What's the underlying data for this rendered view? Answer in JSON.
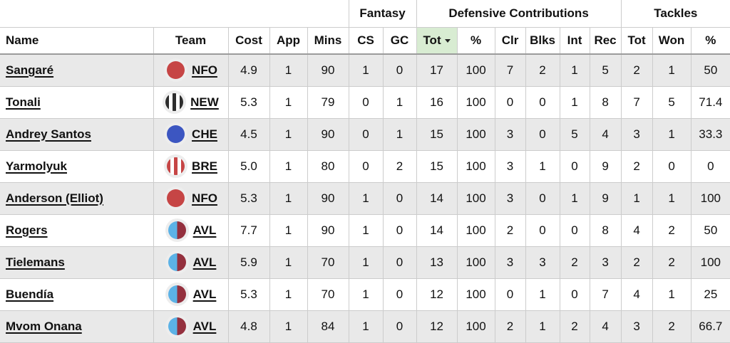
{
  "table": {
    "groups": [
      {
        "label": ""
      },
      {
        "label": "Fantasy"
      },
      {
        "label": "Defensive Contributions"
      },
      {
        "label": "Tackles"
      }
    ],
    "columns": [
      {
        "label": "Name"
      },
      {
        "label": "Team"
      },
      {
        "label": "Cost"
      },
      {
        "label": "App"
      },
      {
        "label": "Mins"
      },
      {
        "label": "CS"
      },
      {
        "label": "GC"
      },
      {
        "label": "Tot",
        "sorted": "desc"
      },
      {
        "label": "%"
      },
      {
        "label": "Clr"
      },
      {
        "label": "Blks"
      },
      {
        "label": "Int"
      },
      {
        "label": "Rec"
      },
      {
        "label": "Tot"
      },
      {
        "label": "Won"
      },
      {
        "label": "%"
      }
    ],
    "rows": [
      {
        "name": "Sangaré",
        "team": "NFO",
        "values": [
          "4.9",
          "1",
          "90",
          "1",
          "0",
          "17",
          "100",
          "7",
          "2",
          "1",
          "5",
          "2",
          "1",
          "50"
        ]
      },
      {
        "name": "Tonali",
        "team": "NEW",
        "values": [
          "5.3",
          "1",
          "79",
          "0",
          "1",
          "16",
          "100",
          "0",
          "0",
          "1",
          "8",
          "7",
          "5",
          "71.4"
        ]
      },
      {
        "name": "Andrey Santos",
        "team": "CHE",
        "values": [
          "4.5",
          "1",
          "90",
          "0",
          "1",
          "15",
          "100",
          "3",
          "0",
          "5",
          "4",
          "3",
          "1",
          "33.3"
        ]
      },
      {
        "name": "Yarmolyuk",
        "team": "BRE",
        "values": [
          "5.0",
          "1",
          "80",
          "0",
          "2",
          "15",
          "100",
          "3",
          "1",
          "0",
          "9",
          "2",
          "0",
          "0"
        ]
      },
      {
        "name": "Anderson (Elliot)",
        "team": "NFO",
        "values": [
          "5.3",
          "1",
          "90",
          "1",
          "0",
          "14",
          "100",
          "3",
          "0",
          "1",
          "9",
          "1",
          "1",
          "100"
        ]
      },
      {
        "name": "Rogers",
        "team": "AVL",
        "values": [
          "7.7",
          "1",
          "90",
          "1",
          "0",
          "14",
          "100",
          "2",
          "0",
          "0",
          "8",
          "4",
          "2",
          "50"
        ]
      },
      {
        "name": "Tielemans",
        "team": "AVL",
        "values": [
          "5.9",
          "1",
          "70",
          "1",
          "0",
          "13",
          "100",
          "3",
          "3",
          "2",
          "3",
          "2",
          "2",
          "100"
        ]
      },
      {
        "name": "Buendía",
        "team": "AVL",
        "values": [
          "5.3",
          "1",
          "70",
          "1",
          "0",
          "12",
          "100",
          "0",
          "1",
          "0",
          "7",
          "4",
          "1",
          "25"
        ]
      },
      {
        "name": "Mvom Onana",
        "team": "AVL",
        "values": [
          "4.8",
          "1",
          "84",
          "1",
          "0",
          "12",
          "100",
          "2",
          "1",
          "2",
          "4",
          "3",
          "2",
          "66.7"
        ]
      }
    ],
    "teams": {
      "NFO": {
        "badge": "solid",
        "colors": [
          "#c64545"
        ]
      },
      "NEW": {
        "badge": "stripes",
        "colors": [
          "#2d2d2d",
          "#ffffff"
        ]
      },
      "CHE": {
        "badge": "solid",
        "colors": [
          "#3c56c1"
        ]
      },
      "BRE": {
        "badge": "stripes",
        "colors": [
          "#c64545",
          "#ffffff"
        ]
      },
      "AVL": {
        "badge": "halves",
        "colors": [
          "#5cb2e6",
          "#94303e"
        ]
      }
    },
    "colors": {
      "sorted_header_bg": "#d8ecd2",
      "stripe": "#e9e9e9",
      "border": "#cccccc",
      "header_border": "#9b9b9b",
      "badge_halo": "#ededed"
    },
    "icons": {
      "sort_desc": "sort-desc-icon"
    }
  }
}
